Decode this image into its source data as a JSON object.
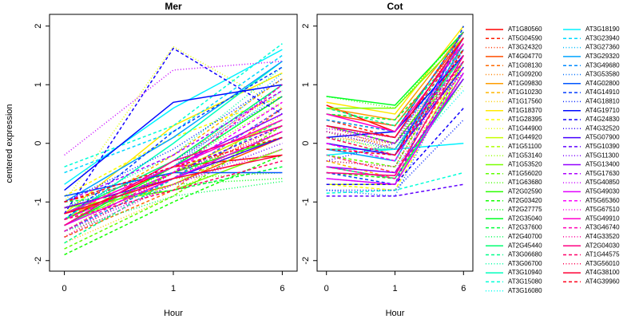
{
  "chart_data": {
    "type": "line",
    "ylabel": "centered expression",
    "categories": [
      "0",
      "1",
      "6"
    ],
    "ylim": [
      -2.18,
      2.2
    ],
    "yticks": [
      -2,
      -1,
      0,
      1,
      2
    ],
    "panels": [
      {
        "title": "Mer",
        "xlabel": "Hour"
      },
      {
        "title": "Cot",
        "xlabel": "Hour"
      }
    ],
    "series": [
      {
        "name": "AT1G80560",
        "color": "#FF0000",
        "dash": "solid",
        "values": [
          [
            -1.3,
            -0.4,
            -0.2
          ],
          [
            0.65,
            0.2,
            1.9
          ]
        ]
      },
      {
        "name": "AT5G04590",
        "color": "#FF1A00",
        "dash": "dashed",
        "values": [
          [
            -1.0,
            -0.5,
            0.4
          ],
          [
            0.4,
            0.1,
            1.7
          ]
        ]
      },
      {
        "name": "AT3G24320",
        "color": "#FF3400",
        "dash": "dotted",
        "values": [
          [
            -1.5,
            -0.6,
            0.3
          ],
          [
            0.3,
            -0.1,
            1.5
          ]
        ]
      },
      {
        "name": "AT4G04770",
        "color": "#FF4E00",
        "dash": "solid",
        "values": [
          [
            -1.2,
            -0.7,
            0.1
          ],
          [
            0.5,
            0.3,
            1.8
          ]
        ]
      },
      {
        "name": "AT1G08130",
        "color": "#FF6800",
        "dash": "dashed",
        "values": [
          [
            -1.6,
            -0.8,
            0.6
          ],
          [
            -0.2,
            -0.5,
            1.4
          ]
        ]
      },
      {
        "name": "AT1G09200",
        "color": "#FF8200",
        "dash": "dotted",
        "values": [
          [
            -1.4,
            -0.3,
            0.9
          ],
          [
            0.1,
            0.0,
            1.6
          ]
        ]
      },
      {
        "name": "AT1G09830",
        "color": "#FF9C00",
        "dash": "solid",
        "values": [
          [
            -1.1,
            -0.6,
            0.2
          ],
          [
            0.6,
            0.4,
            1.9
          ]
        ]
      },
      {
        "name": "AT1G10230",
        "color": "#FFB600",
        "dash": "dashed",
        "values": [
          [
            -1.3,
            -0.2,
            1.1
          ],
          [
            -0.3,
            -0.6,
            1.2
          ]
        ]
      },
      {
        "name": "AT1G17560",
        "color": "#FFCF00",
        "dash": "dotted",
        "values": [
          [
            -1.7,
            -0.9,
            0.5
          ],
          [
            0.2,
            -0.2,
            1.5
          ]
        ]
      },
      {
        "name": "AT1G18370",
        "color": "#FFE900",
        "dash": "solid",
        "values": [
          [
            -1.2,
            0.3,
            1.2
          ],
          [
            0.7,
            0.5,
            2.0
          ]
        ]
      },
      {
        "name": "AT1G28395",
        "color": "#FBFF00",
        "dash": "dashed",
        "values": [
          [
            -0.9,
            0.1,
            0.8
          ],
          [
            -0.7,
            -0.8,
            1.3
          ]
        ]
      },
      {
        "name": "AT1G44900",
        "color": "#E1FF00",
        "dash": "dotted",
        "values": [
          [
            -1.0,
            1.65,
            0.6
          ],
          [
            0.1,
            -0.2,
            1.1
          ]
        ]
      },
      {
        "name": "AT1G44920",
        "color": "#C7FF00",
        "dash": "solid",
        "values": [
          [
            -1.4,
            -0.5,
            0.4
          ],
          [
            -0.7,
            -0.7,
            1.4
          ]
        ]
      },
      {
        "name": "AT1G51100",
        "color": "#ADFF00",
        "dash": "dashed",
        "values": [
          [
            -1.3,
            -0.7,
            0.2
          ],
          [
            0.4,
            0.2,
            1.7
          ]
        ]
      },
      {
        "name": "AT1G53140",
        "color": "#93FF00",
        "dash": "dotted",
        "values": [
          [
            -1.5,
            -0.4,
            0.7
          ],
          [
            0.0,
            -0.3,
            1.0
          ]
        ]
      },
      {
        "name": "AT1G53520",
        "color": "#79FF00",
        "dash": "solid",
        "values": [
          [
            -1.1,
            -0.8,
            -0.1
          ],
          [
            0.6,
            0.6,
            1.8
          ]
        ]
      },
      {
        "name": "AT1G56020",
        "color": "#5FFF00",
        "dash": "dashed",
        "values": [
          [
            -1.8,
            -0.9,
            0.3
          ],
          [
            -0.2,
            -0.4,
            1.6
          ]
        ]
      },
      {
        "name": "AT1G63680",
        "color": "#45FF00",
        "dash": "dotted",
        "values": [
          [
            -1.2,
            -0.6,
            -0.5
          ],
          [
            0.8,
            0.6,
            1.9
          ]
        ]
      },
      {
        "name": "AT2G02590",
        "color": "#2BFF00",
        "dash": "solid",
        "values": [
          [
            -1.3,
            -0.5,
            0.1
          ],
          [
            0.3,
            0.0,
            1.5
          ]
        ]
      },
      {
        "name": "AT2G03420",
        "color": "#11FF00",
        "dash": "dashed",
        "values": [
          [
            -1.9,
            -1.0,
            -0.2
          ],
          [
            -0.5,
            -0.6,
            1.2
          ]
        ]
      },
      {
        "name": "AT2G27775",
        "color": "#00FF09",
        "dash": "dotted",
        "values": [
          [
            -1.6,
            -0.7,
            -0.6
          ],
          [
            0.2,
            -0.1,
            1.4
          ]
        ]
      },
      {
        "name": "AT2G35040",
        "color": "#00FF23",
        "dash": "solid",
        "values": [
          [
            -1.4,
            -0.4,
            0.8
          ],
          [
            0.8,
            0.65,
            1.9
          ]
        ]
      },
      {
        "name": "AT2G37600",
        "color": "#00FF3C",
        "dash": "dashed",
        "values": [
          [
            -1.0,
            -0.8,
            -0.4
          ],
          [
            0.5,
            0.4,
            1.6
          ]
        ]
      },
      {
        "name": "AT2G40700",
        "color": "#00FF56",
        "dash": "dotted",
        "values": [
          [
            -1.5,
            -0.9,
            -0.65
          ],
          [
            0.1,
            -0.1,
            1.3
          ]
        ]
      },
      {
        "name": "AT2G45440",
        "color": "#00FF70",
        "dash": "solid",
        "values": [
          [
            -1.2,
            -0.3,
            1.0
          ],
          [
            -0.4,
            -0.6,
            1.1
          ]
        ]
      },
      {
        "name": "AT3G06680",
        "color": "#00FF8A",
        "dash": "dashed",
        "values": [
          [
            -1.7,
            -0.6,
            0.4
          ],
          [
            0.6,
            0.3,
            1.7
          ]
        ]
      },
      {
        "name": "AT3G06700",
        "color": "#00FFA4",
        "dash": "dotted",
        "values": [
          [
            -1.1,
            -0.2,
            1.3
          ],
          [
            0.2,
            0.0,
            1.8
          ]
        ]
      },
      {
        "name": "AT3G10940",
        "color": "#00FFBE",
        "dash": "solid",
        "values": [
          [
            -1.3,
            0.0,
            1.4
          ],
          [
            -0.1,
            -0.1,
            1.5
          ]
        ]
      },
      {
        "name": "AT3G15080",
        "color": "#00FFD8",
        "dash": "dashed",
        "values": [
          [
            -0.4,
            0.3,
            1.7
          ],
          [
            -0.85,
            -0.8,
            -0.5
          ]
        ]
      },
      {
        "name": "AT3G16080",
        "color": "#00FFF2",
        "dash": "dotted",
        "values": [
          [
            -1.4,
            -0.5,
            0.9
          ],
          [
            -0.3,
            -0.4,
            0.9
          ]
        ]
      },
      {
        "name": "AT3G18190",
        "color": "#00F2FF",
        "dash": "solid",
        "values": [
          [
            -0.7,
            0.6,
            1.6
          ],
          [
            -0.2,
            -0.1,
            0.0
          ]
        ]
      },
      {
        "name": "AT3G23940",
        "color": "#00D8FF",
        "dash": "dashed",
        "values": [
          [
            -0.5,
            0.2,
            1.5
          ],
          [
            0.3,
            0.1,
            1.6
          ]
        ]
      },
      {
        "name": "AT3G27360",
        "color": "#00BEFF",
        "dash": "dotted",
        "values": [
          [
            -1.2,
            -0.4,
            1.2
          ],
          [
            -0.6,
            -0.7,
            1.3
          ]
        ]
      },
      {
        "name": "AT3G29320",
        "color": "#00A4FF",
        "dash": "solid",
        "values": [
          [
            -1.0,
            0.1,
            1.4
          ],
          [
            -0.1,
            -0.3,
            1.7
          ]
        ]
      },
      {
        "name": "AT3G49680",
        "color": "#008AFF",
        "dash": "dashed",
        "values": [
          [
            -1.5,
            -0.6,
            0.6
          ],
          [
            0.4,
            0.2,
            1.9
          ]
        ]
      },
      {
        "name": "AT3G53580",
        "color": "#0070FF",
        "dash": "dotted",
        "values": [
          [
            -1.1,
            -0.4,
            1.0
          ],
          [
            -0.8,
            -0.9,
            1.4
          ]
        ]
      },
      {
        "name": "AT4G02800",
        "color": "#0056FF",
        "dash": "solid",
        "values": [
          [
            -0.9,
            -0.5,
            -0.5
          ],
          [
            0.0,
            -0.2,
            1.8
          ]
        ]
      },
      {
        "name": "AT4G14910",
        "color": "#003CFF",
        "dash": "dashed",
        "values": [
          [
            -1.3,
            0.2,
            1.3
          ],
          [
            -0.5,
            -0.7,
            2.0
          ]
        ]
      },
      {
        "name": "AT4G18810",
        "color": "#0022FF",
        "dash": "dotted",
        "values": [
          [
            -1.0,
            -0.1,
            1.1
          ],
          [
            -0.8,
            -0.8,
            0.4
          ]
        ]
      },
      {
        "name": "AT4G19710",
        "color": "#0009FF",
        "dash": "solid",
        "values": [
          [
            -0.8,
            0.7,
            1.0
          ],
          [
            0.1,
            0.2,
            1.5
          ]
        ]
      },
      {
        "name": "AT4G24830",
        "color": "#1100FF",
        "dash": "dashed",
        "values": [
          [
            -1.2,
            1.62,
            0.5
          ],
          [
            -0.7,
            -0.7,
            0.6
          ]
        ]
      },
      {
        "name": "AT4G32520",
        "color": "#2B00FF",
        "dash": "dotted",
        "values": [
          [
            -1.4,
            -0.3,
            0.8
          ],
          [
            -0.3,
            0.0,
            1.2
          ]
        ]
      },
      {
        "name": "AT5G07900",
        "color": "#4500FF",
        "dash": "solid",
        "values": [
          [
            -1.1,
            -0.6,
            0.1
          ],
          [
            0.0,
            -0.2,
            1.3
          ]
        ]
      },
      {
        "name": "AT5G10390",
        "color": "#5F00FF",
        "dash": "dashed",
        "values": [
          [
            -1.3,
            -0.5,
            0.3
          ],
          [
            -0.9,
            -0.9,
            -0.7
          ]
        ]
      },
      {
        "name": "AT5G11300",
        "color": "#7900FF",
        "dash": "dotted",
        "values": [
          [
            -1.5,
            -0.7,
            0.0
          ],
          [
            0.2,
            -0.1,
            1.6
          ]
        ]
      },
      {
        "name": "AT5G13400",
        "color": "#9300FF",
        "dash": "solid",
        "values": [
          [
            -1.2,
            -0.4,
            0.5
          ],
          [
            -0.4,
            -0.5,
            1.1
          ]
        ]
      },
      {
        "name": "AT5G17630",
        "color": "#AD00FF",
        "dash": "dashed",
        "values": [
          [
            -1.0,
            -0.2,
            0.9
          ],
          [
            0.3,
            0.0,
            1.4
          ]
        ]
      },
      {
        "name": "AT5G40850",
        "color": "#C700FF",
        "dash": "dotted",
        "values": [
          [
            -0.2,
            1.25,
            1.4
          ],
          [
            0.25,
            0.1,
            1.5
          ]
        ]
      },
      {
        "name": "AT5G49030",
        "color": "#E100FF",
        "dash": "solid",
        "values": [
          [
            -1.4,
            -0.6,
            0.2
          ],
          [
            -0.6,
            -0.7,
            1.2
          ]
        ]
      },
      {
        "name": "AT5G65360",
        "color": "#FB00FF",
        "dash": "dashed",
        "values": [
          [
            -1.3,
            -0.5,
            0.7
          ],
          [
            0.0,
            -0.3,
            1.8
          ]
        ]
      },
      {
        "name": "AT5G67510",
        "color": "#FF00E9",
        "dash": "dotted",
        "values": [
          [
            -1.6,
            -0.7,
            -0.1
          ],
          [
            -0.2,
            -0.5,
            1.6
          ]
        ]
      },
      {
        "name": "AT5G49910",
        "color": "#FF00CF",
        "dash": "solid",
        "values": [
          [
            -1.2,
            -0.4,
            0.4
          ],
          [
            0.5,
            0.2,
            1.7
          ]
        ]
      },
      {
        "name": "AT3G46740",
        "color": "#FF00B5",
        "dash": "dashed",
        "values": [
          [
            -1.5,
            -0.5,
            1.0
          ],
          [
            -0.4,
            -0.6,
            1.3
          ]
        ]
      },
      {
        "name": "AT4G33520",
        "color": "#FF009C",
        "dash": "dotted",
        "values": [
          [
            -1.1,
            -0.6,
            0.6
          ],
          [
            0.2,
            0.0,
            1.9
          ]
        ]
      },
      {
        "name": "AT2G04030",
        "color": "#FF0082",
        "dash": "solid",
        "values": [
          [
            -1.4,
            -0.3,
            0.3
          ],
          [
            -0.5,
            -0.55,
            1.5
          ]
        ]
      },
      {
        "name": "AT1G44575",
        "color": "#FF0068",
        "dash": "dashed",
        "values": [
          [
            -1.3,
            -0.8,
            -0.3
          ],
          [
            0.1,
            -0.2,
            1.4
          ]
        ]
      },
      {
        "name": "AT3G56010",
        "color": "#FF004E",
        "dash": "dotted",
        "values": [
          [
            -1.6,
            -0.5,
            0.2
          ],
          [
            -0.3,
            -0.4,
            1.7
          ]
        ]
      },
      {
        "name": "AT4G38100",
        "color": "#FF0034",
        "dash": "solid",
        "values": [
          [
            -1.2,
            -0.6,
            -0.2
          ],
          [
            0.3,
            0.1,
            1.8
          ]
        ]
      },
      {
        "name": "AT4G39960",
        "color": "#FF001A",
        "dash": "dashed",
        "values": [
          [
            -1.0,
            -0.4,
            0.1
          ],
          [
            -0.1,
            -0.2,
            1.6
          ]
        ]
      }
    ]
  }
}
